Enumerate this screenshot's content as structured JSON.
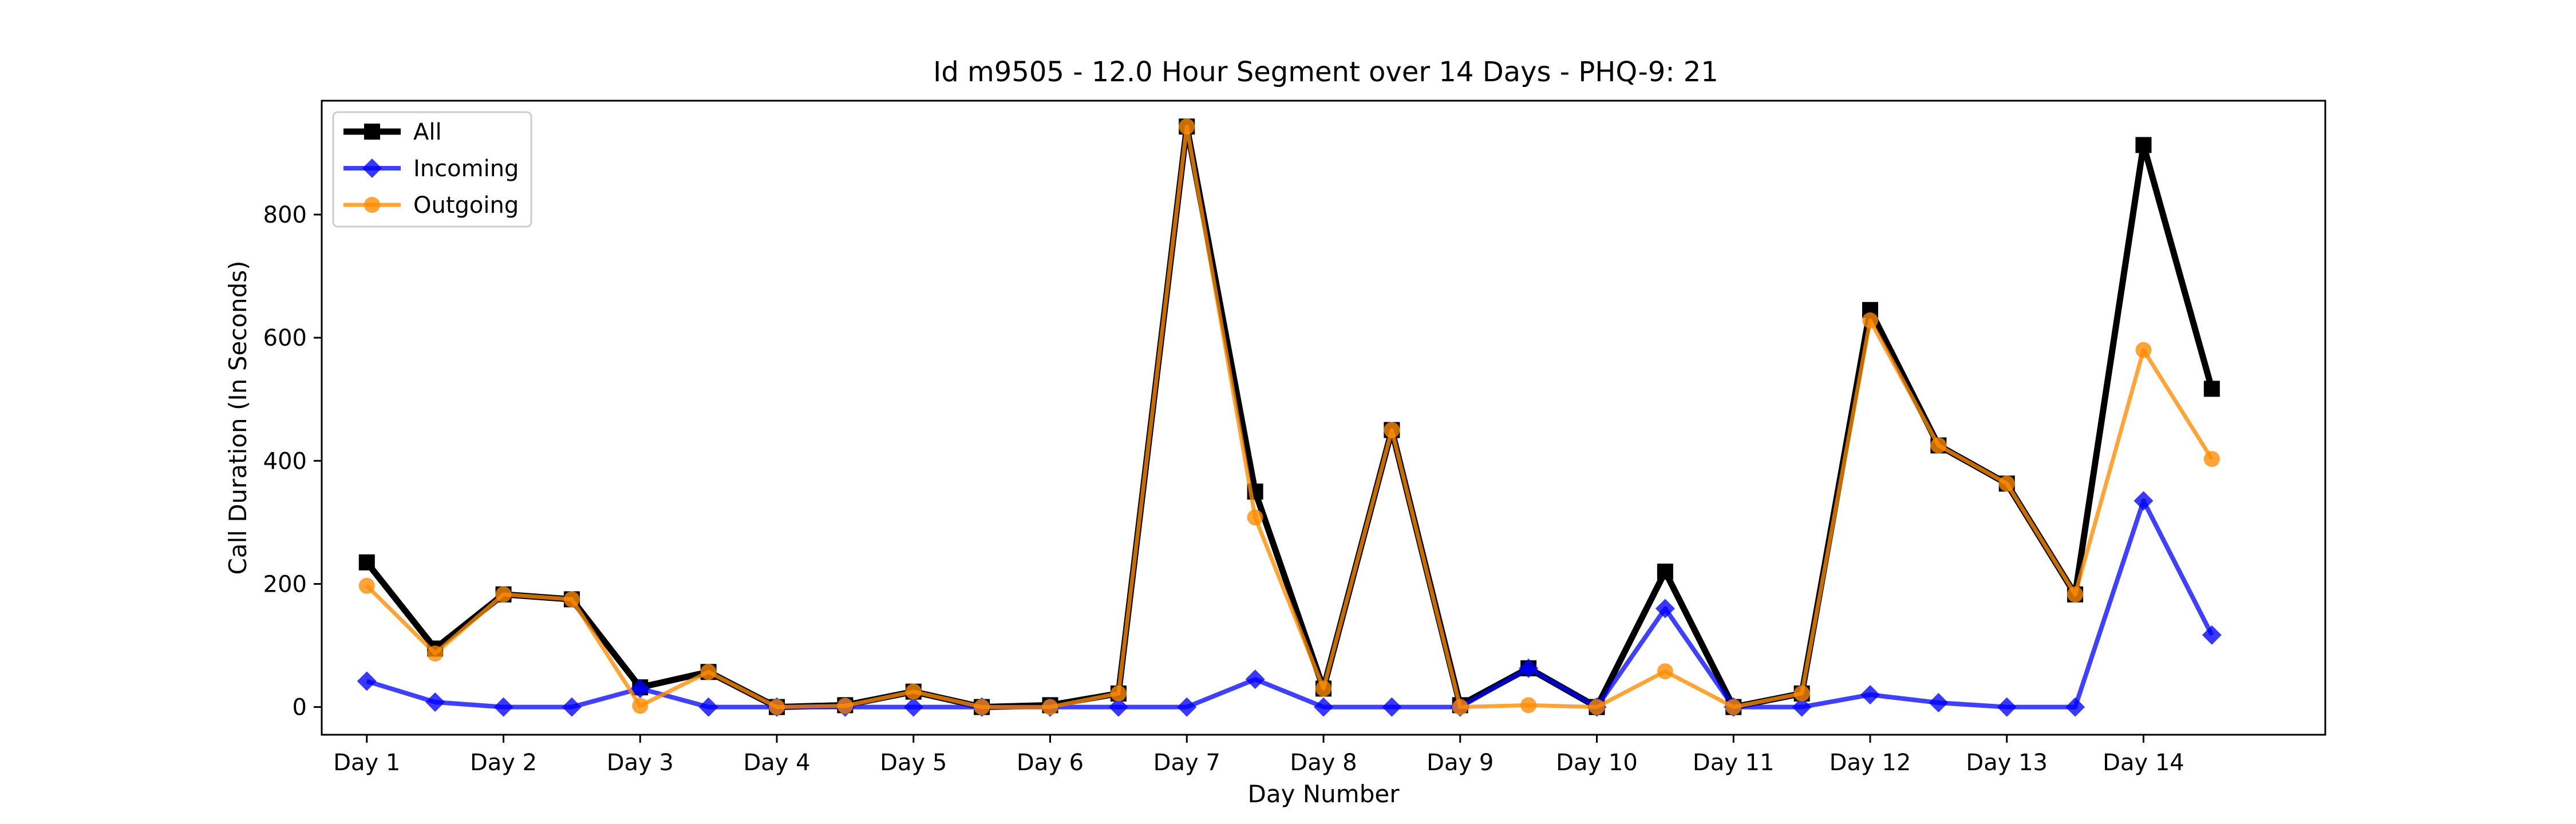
{
  "chart_data": {
    "type": "line",
    "title": "Id m9505 - 12.0 Hour Segment over 14 Days - PHQ-9: 21",
    "xlabel": "Day Number",
    "ylabel": "Call Duration (In Seconds)",
    "x_tick_labels": [
      "Day 1",
      "Day 2",
      "Day 3",
      "Day 4",
      "Day 5",
      "Day 6",
      "Day 7",
      "Day 8",
      "Day 9",
      "Day 10",
      "Day 11",
      "Day 12",
      "Day 13",
      "Day 14"
    ],
    "y_ticks": [
      0,
      200,
      400,
      600,
      800
    ],
    "ylim": [
      -45,
      985
    ],
    "xlim": [
      -0.66,
      28.66
    ],
    "grid": false,
    "legend_position": "upper-left",
    "series": [
      {
        "name": "All",
        "color": "#000000",
        "marker": "square",
        "values": [
          235,
          95,
          183,
          175,
          32,
          57,
          0,
          3,
          25,
          0,
          3,
          22,
          943,
          350,
          30,
          450,
          3,
          63,
          0,
          220,
          0,
          22,
          645,
          425,
          363,
          183,
          913,
          517
        ]
      },
      {
        "name": "Incoming",
        "color": "#0000ff",
        "marker": "diamond",
        "values": [
          42,
          8,
          0,
          0,
          30,
          0,
          0,
          0,
          0,
          0,
          0,
          0,
          0,
          45,
          0,
          0,
          0,
          63,
          0,
          160,
          0,
          0,
          20,
          7,
          0,
          0,
          335,
          117
        ]
      },
      {
        "name": "Outgoing",
        "color": "#ff8c00",
        "marker": "circle",
        "values": [
          197,
          87,
          183,
          175,
          2,
          57,
          0,
          2,
          25,
          0,
          0,
          22,
          943,
          308,
          30,
          450,
          0,
          3,
          0,
          58,
          0,
          22,
          628,
          425,
          363,
          183,
          580,
          403
        ]
      }
    ]
  }
}
